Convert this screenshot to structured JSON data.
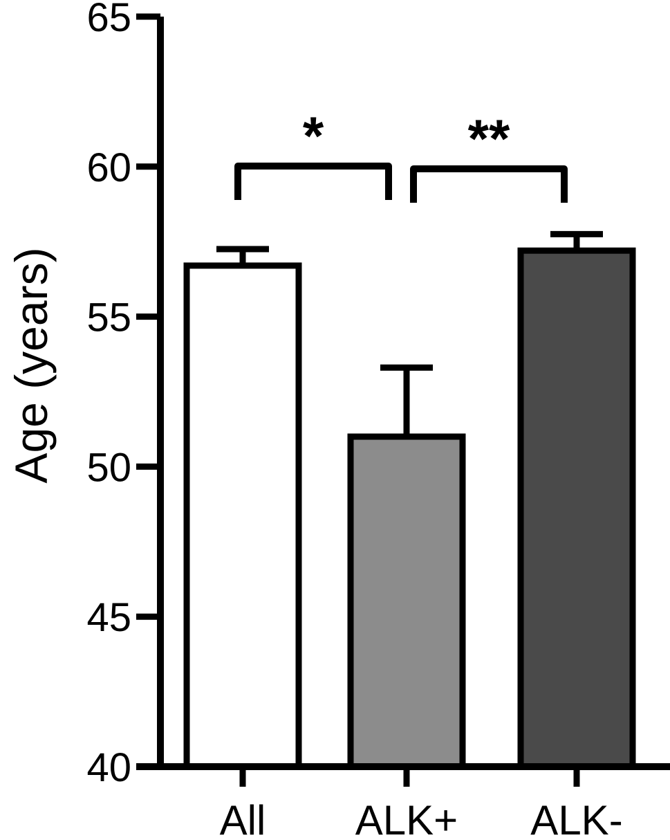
{
  "chart_data": {
    "type": "bar",
    "title": "",
    "xlabel": "",
    "ylabel": "Age (years)",
    "ylim": [
      40,
      65
    ],
    "yticks": [
      40,
      45,
      50,
      55,
      60,
      65
    ],
    "grid": false,
    "categories": [
      "All",
      "ALK+",
      "ALK-"
    ],
    "values": [
      56.7,
      51.0,
      57.2
    ],
    "errors": [
      0.55,
      2.3,
      0.55
    ],
    "colors": [
      "#ffffff",
      "#8c8c8c",
      "#4a4a4a"
    ],
    "significance": [
      {
        "from": 0,
        "to": 1,
        "label": "*"
      },
      {
        "from": 1,
        "to": 2,
        "label": "**"
      }
    ]
  }
}
